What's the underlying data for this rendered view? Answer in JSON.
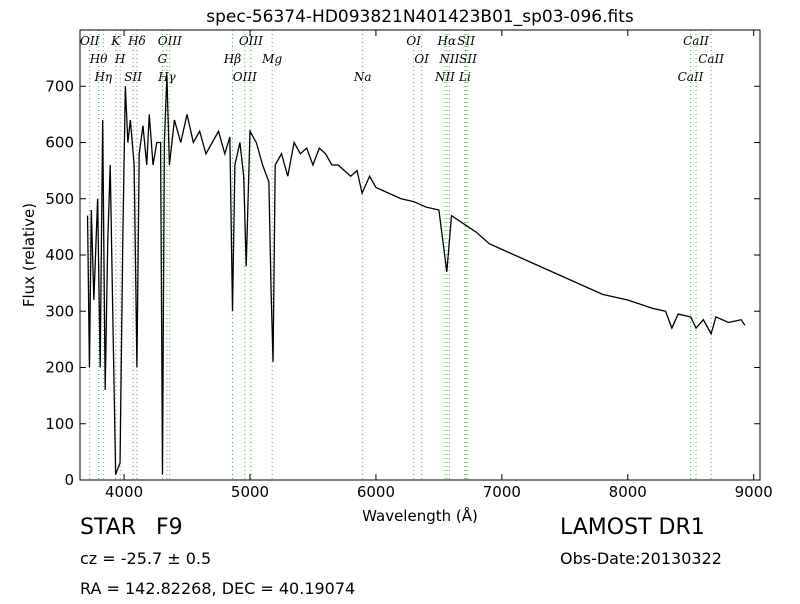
{
  "chart_data": {
    "type": "line",
    "title": "spec-56374-HD093821N401423B01_sp03-096.fits",
    "x_label": "Wavelength (Å)",
    "y_label": "Flux (relative)",
    "xlim": [
      3650,
      9050
    ],
    "ylim": [
      0,
      800
    ],
    "xticks": [
      4000,
      5000,
      6000,
      7000,
      8000,
      9000
    ],
    "yticks": [
      0,
      100,
      200,
      300,
      400,
      500,
      600,
      700
    ],
    "grid": false,
    "series": [
      {
        "color": "#000000",
        "x": [
          3710,
          3725,
          3740,
          3760,
          3790,
          3810,
          3830,
          3850,
          3870,
          3890,
          3910,
          3933,
          3950,
          3968,
          3990,
          4010,
          4030,
          4050,
          4080,
          4102,
          4120,
          4150,
          4180,
          4200,
          4230,
          4260,
          4290,
          4305,
          4320,
          4340,
          4360,
          4400,
          4450,
          4500,
          4550,
          4600,
          4650,
          4700,
          4750,
          4800,
          4840,
          4861,
          4880,
          4920,
          4950,
          4970,
          5000,
          5050,
          5100,
          5150,
          5167,
          5183,
          5200,
          5250,
          5300,
          5350,
          5400,
          5450,
          5500,
          5550,
          5600,
          5650,
          5700,
          5750,
          5800,
          5850,
          5890,
          5950,
          6000,
          6100,
          6200,
          6300,
          6400,
          6500,
          6563,
          6600,
          6700,
          6800,
          6900,
          7000,
          7200,
          7400,
          7600,
          7800,
          8000,
          8200,
          8300,
          8350,
          8400,
          8500,
          8542,
          8600,
          8662,
          8700,
          8800,
          8900,
          8930
        ],
        "values": [
          470,
          200,
          480,
          320,
          500,
          200,
          640,
          160,
          420,
          560,
          300,
          10,
          20,
          30,
          430,
          700,
          600,
          640,
          560,
          200,
          580,
          630,
          560,
          650,
          560,
          600,
          600,
          10,
          600,
          720,
          560,
          640,
          600,
          650,
          600,
          620,
          580,
          600,
          620,
          580,
          610,
          300,
          560,
          600,
          540,
          380,
          620,
          600,
          560,
          530,
          340,
          210,
          560,
          580,
          540,
          600,
          580,
          590,
          560,
          590,
          580,
          560,
          560,
          550,
          540,
          550,
          510,
          540,
          520,
          510,
          500,
          495,
          485,
          480,
          370,
          470,
          455,
          440,
          420,
          410,
          390,
          370,
          350,
          330,
          320,
          305,
          300,
          270,
          295,
          290,
          270,
          285,
          260,
          290,
          280,
          285,
          275
        ]
      }
    ],
    "lines_color": "#4daf4a",
    "lines": [
      {
        "name": "OII",
        "wavelength": 3727
      },
      {
        "name": "Hθ",
        "wavelength": 3798
      },
      {
        "name": "Hη",
        "wavelength": 3835
      },
      {
        "name": "K",
        "wavelength": 3934
      },
      {
        "name": "H",
        "wavelength": 3969
      },
      {
        "name": "SII",
        "wavelength": 4072
      },
      {
        "name": "Hδ",
        "wavelength": 4102
      },
      {
        "name": "G",
        "wavelength": 4305
      },
      {
        "name": "Hγ",
        "wavelength": 4340
      },
      {
        "name": "OIII",
        "wavelength": 4363
      },
      {
        "name": "Hβ",
        "wavelength": 4861
      },
      {
        "name": "OIII",
        "wavelength": 4959
      },
      {
        "name": "OIII",
        "wavelength": 5007
      },
      {
        "name": "Mg",
        "wavelength": 5176
      },
      {
        "name": "Na",
        "wavelength": 5895
      },
      {
        "name": "OI",
        "wavelength": 6300
      },
      {
        "name": "OI",
        "wavelength": 6363
      },
      {
        "name": "NII",
        "wavelength": 6548
      },
      {
        "name": "Hα",
        "wavelength": 6563
      },
      {
        "name": "NII",
        "wavelength": 6583
      },
      {
        "name": "Li",
        "wavelength": 6707
      },
      {
        "name": "SII",
        "wavelength": 6716
      },
      {
        "name": "SII",
        "wavelength": 6731
      },
      {
        "name": "CaII",
        "wavelength": 8498
      },
      {
        "name": "CaII",
        "wavelength": 8542
      },
      {
        "name": "CaII",
        "wavelength": 8662
      }
    ]
  },
  "footer": {
    "object_class": "STAR",
    "subclass": "F9",
    "redshift": "cz = -25.7  ± 0.5",
    "coordinates": "RA = 142.82268, DEC = 40.19074",
    "survey": "LAMOST DR1",
    "obs_date": "Obs-Date:20130322"
  }
}
